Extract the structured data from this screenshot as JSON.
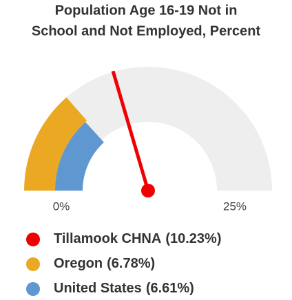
{
  "chart_data": {
    "type": "gauge",
    "title": [
      "Population Age 16-19 Not in",
      "School and Not Employed, Percent"
    ],
    "ylim": [
      0,
      25
    ],
    "yticks": [
      {
        "value": 0,
        "label": "0%"
      },
      {
        "value": 25,
        "label": "25%"
      }
    ],
    "series": [
      {
        "name": "Tillamook CHNA",
        "color": "#f00000",
        "values": [
          10.23
        ],
        "value_labels": [
          "(10.23%)"
        ],
        "style": "needle"
      },
      {
        "name": "Oregon",
        "color": "#eba923",
        "values": [
          6.78
        ],
        "value_labels": [
          "(6.78%)"
        ],
        "style": "arc"
      },
      {
        "name": "United States",
        "color": "#5f97d0",
        "values": [
          6.61
        ],
        "value_labels": [
          "(6.61%)"
        ],
        "style": "arc"
      }
    ]
  }
}
